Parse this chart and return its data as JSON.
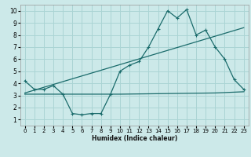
{
  "title": "",
  "xlabel": "Humidex (Indice chaleur)",
  "background_color": "#cce9e9",
  "grid_color": "#aad4d4",
  "line_color": "#1a6b6b",
  "xlim": [
    -0.5,
    23.5
  ],
  "ylim": [
    0.5,
    10.5
  ],
  "yticks": [
    1,
    2,
    3,
    4,
    5,
    6,
    7,
    8,
    9,
    10
  ],
  "xticks": [
    0,
    1,
    2,
    3,
    4,
    5,
    6,
    7,
    8,
    9,
    10,
    11,
    12,
    13,
    14,
    15,
    16,
    17,
    18,
    19,
    20,
    21,
    22,
    23
  ],
  "line1_x": [
    0,
    1,
    2,
    3,
    4,
    5,
    6,
    7,
    8,
    9,
    10,
    11,
    12,
    13,
    14,
    15,
    16,
    17,
    18,
    19,
    20,
    21,
    22,
    23
  ],
  "line1_y": [
    4.2,
    3.5,
    3.5,
    3.8,
    3.1,
    1.5,
    1.4,
    1.5,
    1.5,
    3.1,
    5.0,
    5.5,
    5.8,
    7.0,
    8.5,
    10.0,
    9.4,
    10.1,
    8.0,
    8.4,
    7.0,
    6.0,
    4.3,
    3.5
  ],
  "line2_x": [
    0,
    10,
    20,
    23
  ],
  "line2_y": [
    3.1,
    3.1,
    3.2,
    3.3
  ],
  "line3_x": [
    0,
    23
  ],
  "line3_y": [
    3.2,
    8.6
  ],
  "lw": 0.9,
  "marker_size": 2.5,
  "xlabel_fontsize": 5.5,
  "tick_fontsize_x": 5.0,
  "tick_fontsize_y": 5.5
}
